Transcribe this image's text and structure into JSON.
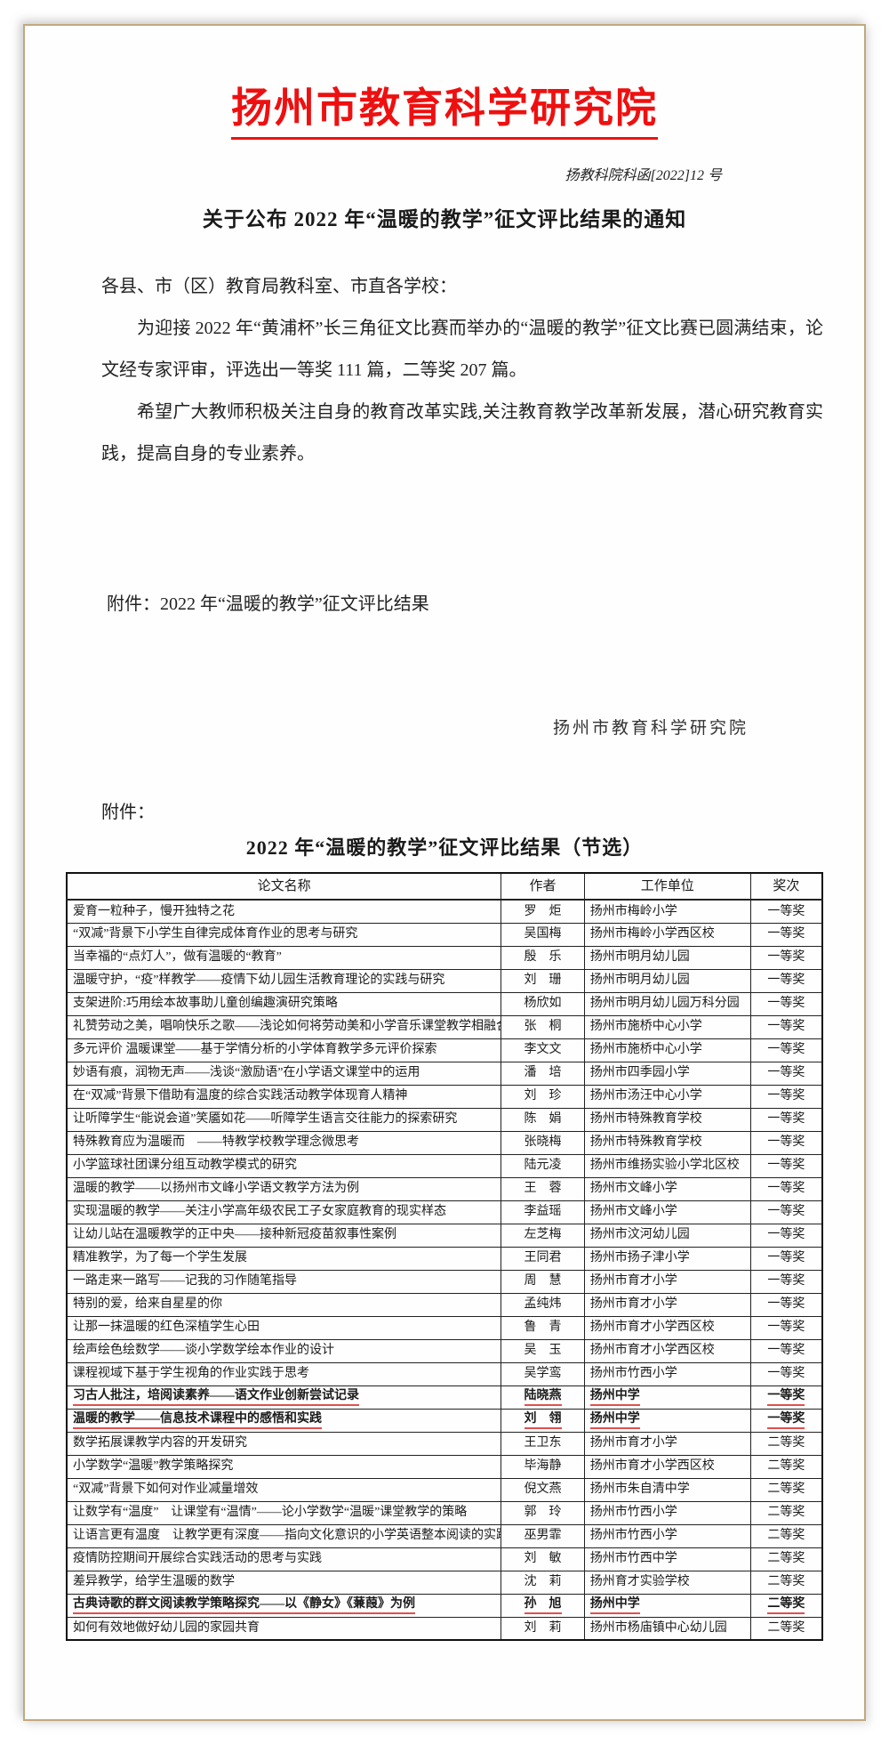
{
  "colors": {
    "accent_red": "#ee1010",
    "underline_red": "#e34f4f"
  },
  "page": {
    "org_title": "扬州市教育科学研究院",
    "doc_number": "扬教科院科函[2022]12 号",
    "notice_title": "关于公布 2022 年“温暖的教学”征文评比结果的通知",
    "salutation": "各县、市（区）教育局教科室、市直各学校：",
    "para1": "为迎接 2022 年“黄浦杯”长三角征文比赛而举办的“温暖的教学”征文比赛已圆满结束，论文经专家评审，评选出一等奖 111 篇，二等奖 207 篇。",
    "para2": "希望广大教师积极关注自身的教育改革实践,关注教育教学改革新发展，潜心研究教育实践，提高自身的专业素养。",
    "attachment_line": "附件：2022 年“温暖的教学”征文评比结果",
    "signature": "扬州市教育科学研究院",
    "attachment_label": "附件：",
    "table_title": "2022 年“温暖的教学”征文评比结果（节选）"
  },
  "table": {
    "headers": [
      "论文名称",
      "作者",
      "工作单位",
      "奖次"
    ],
    "rows": [
      {
        "title": "爱育一粒种子，慢开独特之花",
        "author": "罗　炬",
        "unit": "扬州市梅岭小学",
        "award": "一等奖",
        "highlight": false
      },
      {
        "title": "“双减”背景下小学生自律完成体育作业的思考与研究",
        "author": "吴国梅",
        "unit": "扬州市梅岭小学西区校",
        "award": "一等奖",
        "highlight": false
      },
      {
        "title": "当幸福的“点灯人”，做有温暖的“教育”",
        "author": "殷　乐",
        "unit": "扬州市明月幼儿园",
        "award": "一等奖",
        "highlight": false
      },
      {
        "title": "温暖守护，“疫”样教学——疫情下幼儿园生活教育理论的实践与研究",
        "author": "刘　珊",
        "unit": "扬州市明月幼儿园",
        "award": "一等奖",
        "highlight": false
      },
      {
        "title": "支架进阶:巧用绘本故事助儿童创编趣演研究策略",
        "author": "杨欣如",
        "unit": "扬州市明月幼儿园万科分园",
        "award": "一等奖",
        "highlight": false
      },
      {
        "title": "礼赞劳动之美，唱响快乐之歌——浅论如何将劳动美和小学音乐课堂教学相融合",
        "author": "张　桐",
        "unit": "扬州市施桥中心小学",
        "award": "一等奖",
        "highlight": false
      },
      {
        "title": "多元评价 温暖课堂——基于学情分析的小学体育教学多元评价探索",
        "author": "李文文",
        "unit": "扬州市施桥中心小学",
        "award": "一等奖",
        "highlight": false
      },
      {
        "title": "妙语有痕，润物无声——浅谈“激励语”在小学语文课堂中的运用",
        "author": "潘　培",
        "unit": "扬州市四季园小学",
        "award": "一等奖",
        "highlight": false
      },
      {
        "title": "在“双减”背景下借助有温度的综合实践活动教学体现育人精神",
        "author": "刘　珍",
        "unit": "扬州市汤汪中心小学",
        "award": "一等奖",
        "highlight": false
      },
      {
        "title": "让听障学生“能说会道”笑靥如花——听障学生语言交往能力的探索研究",
        "author": "陈　娟",
        "unit": "扬州市特殊教育学校",
        "award": "一等奖",
        "highlight": false
      },
      {
        "title": "特殊教育应为温暖而　——特教学校教学理念微思考",
        "author": "张晓梅",
        "unit": "扬州市特殊教育学校",
        "award": "一等奖",
        "highlight": false
      },
      {
        "title": "小学篮球社团课分组互动教学模式的研究",
        "author": "陆元凌",
        "unit": "扬州市维扬实验小学北区校",
        "award": "一等奖",
        "highlight": false
      },
      {
        "title": "温暖的教学——以扬州市文峰小学语文教学方法为例",
        "author": "王　蓉",
        "unit": "扬州市文峰小学",
        "award": "一等奖",
        "highlight": false
      },
      {
        "title": "实现温暖的教学——关注小学高年级农民工子女家庭教育的现实样态",
        "author": "李益瑶",
        "unit": "扬州市文峰小学",
        "award": "一等奖",
        "highlight": false
      },
      {
        "title": "让幼儿站在温暖教学的正中央——接种新冠疫苗叙事性案例",
        "author": "左芝梅",
        "unit": "扬州市汶河幼儿园",
        "award": "一等奖",
        "highlight": false
      },
      {
        "title": "精准教学，为了每一个学生发展",
        "author": "王同君",
        "unit": "扬州市扬子津小学",
        "award": "一等奖",
        "highlight": false
      },
      {
        "title": "一路走来一路写——记我的习作随笔指导",
        "author": "周　慧",
        "unit": "扬州市育才小学",
        "award": "一等奖",
        "highlight": false
      },
      {
        "title": "特别的爱，给来自星星的你",
        "author": "孟纯炜",
        "unit": "扬州市育才小学",
        "award": "一等奖",
        "highlight": false
      },
      {
        "title": "让那一抹温暖的红色深植学生心田",
        "author": "鲁　青",
        "unit": "扬州市育才小学西区校",
        "award": "一等奖",
        "highlight": false
      },
      {
        "title": "绘声绘色绘数学——谈小学数学绘本作业的设计",
        "author": "吴　玉",
        "unit": "扬州市育才小学西区校",
        "award": "一等奖",
        "highlight": false
      },
      {
        "title": "课程视域下基于学生视角的作业实践于思考",
        "author": "吴学鸾",
        "unit": "扬州市竹西小学",
        "award": "一等奖",
        "highlight": false
      },
      {
        "title": "习古人批注，培阅读素养——语文作业创新尝试记录",
        "author": "陆晓燕",
        "unit": "扬州中学",
        "award": "一等奖",
        "highlight": true
      },
      {
        "title": "温暖的教学——信息技术课程中的感悟和实践",
        "author": "刘　翎",
        "unit": "扬州中学",
        "award": "一等奖",
        "highlight": true
      },
      {
        "title": "数学拓展课教学内容的开发研究",
        "author": "王卫东",
        "unit": "扬州市育才小学",
        "award": "二等奖",
        "highlight": false
      },
      {
        "title": "小学数学“温暖”教学策略探究",
        "author": "毕海静",
        "unit": "扬州市育才小学西区校",
        "award": "二等奖",
        "highlight": false
      },
      {
        "title": "“双减”背景下如何对作业减量增效",
        "author": "倪文燕",
        "unit": "扬州市朱自清中学",
        "award": "二等奖",
        "highlight": false
      },
      {
        "title": "让数学有“温度”　让课堂有“温情”——论小学数学“温暖”课堂教学的策略",
        "author": "郭　玲",
        "unit": "扬州市竹西小学",
        "award": "二等奖",
        "highlight": false
      },
      {
        "title": "让语言更有温度　让教学更有深度——指向文化意识的小学英语整本阅读的实践研究",
        "author": "巫男霏",
        "unit": "扬州市竹西小学",
        "award": "二等奖",
        "highlight": false
      },
      {
        "title": "疫情防控期间开展综合实践活动的思考与实践",
        "author": "刘　敏",
        "unit": "扬州市竹西中学",
        "award": "二等奖",
        "highlight": false
      },
      {
        "title": "差异教学，给学生温暖的数学",
        "author": "沈　莉",
        "unit": "扬州育才实验学校",
        "award": "二等奖",
        "highlight": false
      },
      {
        "title": "古典诗歌的群文阅读教学策略探究——以《静女》《蒹葭》为例",
        "author": "孙　旭",
        "unit": "扬州中学",
        "award": "二等奖",
        "highlight": true
      },
      {
        "title": "如何有效地做好幼儿园的家园共育",
        "author": "刘　莉",
        "unit": "扬州市杨庙镇中心幼儿园",
        "award": "二等奖",
        "highlight": false
      }
    ]
  }
}
